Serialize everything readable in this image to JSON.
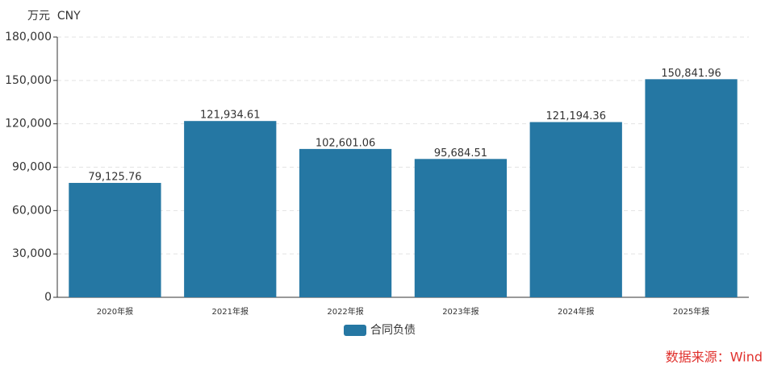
{
  "chart_data": {
    "type": "bar",
    "unit": "万元  CNY",
    "categories": [
      "2020年报",
      "2021年报",
      "2022年报",
      "2023年报",
      "2024年报",
      "2025年报"
    ],
    "series": [
      {
        "name": "合同负债",
        "color": "#2577a3",
        "values": [
          79125.76,
          121934.61,
          102601.06,
          95684.51,
          121194.36,
          150841.96
        ],
        "value_labels": [
          "79,125.76",
          "121,934.61",
          "102,601.06",
          "95,684.51",
          "121,194.36",
          "150,841.96"
        ]
      }
    ],
    "ylim": [
      0,
      180000
    ],
    "yticks": [
      0,
      {
        "value": 30000,
        "label": "30,000"
      },
      {
        "value": 60000,
        "label": "60,000"
      },
      {
        "value": 90000,
        "label": "90,000"
      },
      {
        "value": 120000,
        "label": "120,000"
      },
      {
        "value": 150000,
        "label": "150,000"
      },
      {
        "value": 180000,
        "label": "180,000"
      }
    ],
    "grid": true,
    "legend": "bottom",
    "source": "数据来源：Wind"
  }
}
